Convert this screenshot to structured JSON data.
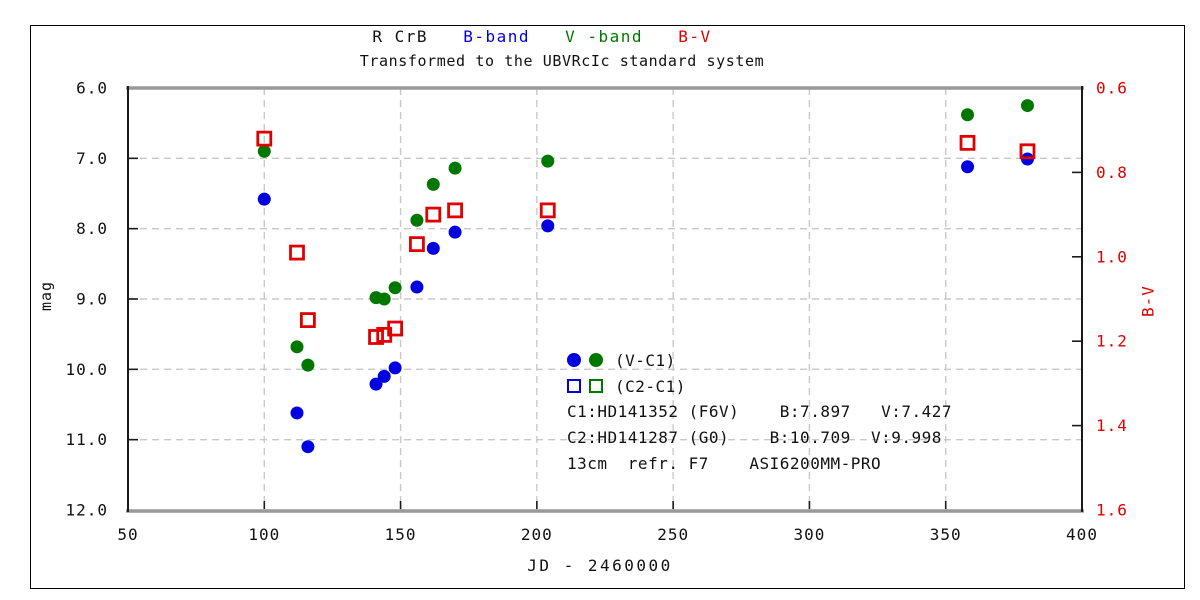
{
  "window": {
    "background": "#ffffff",
    "frame_border_color": "#000000"
  },
  "title": {
    "object_label": "R CrB",
    "band_b": {
      "label": "B-band",
      "color": "#0000e0"
    },
    "band_v": {
      "label": "V -band",
      "color": "#007800"
    },
    "band_bv": {
      "label": "B-V",
      "color": "#e00000"
    }
  },
  "subtitle": "Transformed to the UBVRcIc standard system",
  "axes": {
    "x": {
      "title": "JD - 2460000",
      "tick_labels": [
        "50",
        "100",
        "150",
        "200",
        "250",
        "300",
        "350",
        "400"
      ],
      "min": 50,
      "max": 400
    },
    "y_left": {
      "title": "mag",
      "tick_labels": [
        "6.0",
        "7.0",
        "8.0",
        "9.0",
        "10.0",
        "11.0",
        "12.0"
      ],
      "min": 6.0,
      "max": 12.0,
      "color": "#111111"
    },
    "y_right": {
      "title": "B-V",
      "tick_labels": [
        "0.6",
        "0.8",
        "1.0",
        "1.2",
        "1.4",
        "1.6"
      ],
      "min": 0.6,
      "max": 1.6,
      "color": "#e00000"
    }
  },
  "legend": {
    "row1_label": "(V-C1)",
    "row2_label": "(C2-C1)",
    "c1_line": "C1:HD141352 (F6V)    B:7.897   V:7.427",
    "c2_line": "C2:HD141287 (G0)    B:10.709  V:9.998",
    "equipment_line": "13cm  refr. F7    ASI6200MM-PRO"
  },
  "chart_data": {
    "type": "scatter",
    "title": "R CrB  B-band  V -band  B-V",
    "subtitle": "Transformed to the UBVRcIc standard system",
    "xlabel": "JD - 2460000",
    "ylabel_left": "mag",
    "ylabel_right": "B-V",
    "xlim": [
      50,
      400
    ],
    "ylim_left": [
      6.0,
      12.0
    ],
    "ylim_right": [
      0.6,
      1.6
    ],
    "grid": "dashed-gray",
    "grid_x_at": [
      100,
      150,
      200,
      250,
      300,
      350
    ],
    "grid_y_left_at": [
      7,
      8,
      9,
      10,
      11
    ],
    "x_ticks": [
      50,
      100,
      150,
      200,
      250,
      300,
      350,
      400
    ],
    "y_left_ticks": [
      6.0,
      7.0,
      8.0,
      9.0,
      10.0,
      11.0,
      12.0
    ],
    "y_right_ticks": [
      0.6,
      0.8,
      1.0,
      1.2,
      1.4,
      1.6
    ],
    "x": [
      100,
      112,
      116,
      141,
      144,
      148,
      156,
      162,
      170,
      204,
      358,
      380
    ],
    "series": [
      {
        "name": "B-band (V-C1)",
        "axis": "left",
        "marker": "filled-circle",
        "color": "#0000e0",
        "values": [
          7.58,
          10.62,
          11.1,
          10.21,
          10.1,
          9.98,
          8.83,
          8.28,
          8.05,
          7.96,
          7.12,
          7.01
        ]
      },
      {
        "name": "V-band (V-C1)",
        "axis": "left",
        "marker": "filled-circle",
        "color": "#007800",
        "values": [
          6.9,
          9.68,
          9.94,
          8.98,
          9.0,
          8.84,
          7.88,
          7.37,
          7.14,
          7.04,
          6.38,
          6.25
        ]
      },
      {
        "name": "B-V (C2-C1)",
        "axis": "right",
        "marker": "open-square",
        "color": "#e00000",
        "values": [
          0.72,
          0.99,
          1.15,
          1.19,
          1.185,
          1.17,
          0.97,
          0.9,
          0.89,
          0.89,
          0.73,
          0.75
        ]
      }
    ],
    "legend_position": "inside-bottom-center"
  }
}
